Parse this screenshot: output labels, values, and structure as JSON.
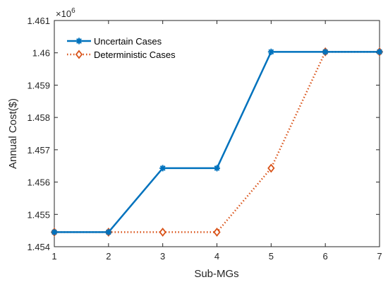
{
  "chart_data": {
    "type": "line",
    "xlabel": "Sub-MGs",
    "ylabel": "Annual Cost($)",
    "exponent_base": "×10",
    "exponent_power": "6",
    "xlim": [
      1,
      7
    ],
    "ylim": [
      1.454,
      1.461
    ],
    "xticks": [
      "1",
      "2",
      "3",
      "4",
      "5",
      "6",
      "7"
    ],
    "yticks": [
      "1.454",
      "1.455",
      "1.456",
      "1.457",
      "1.458",
      "1.459",
      "1.46",
      "1.461"
    ],
    "x": [
      1,
      2,
      3,
      4,
      5,
      6,
      7
    ],
    "legend_position": "top-left",
    "series": [
      {
        "name": "Uncertain Cases",
        "color": "#0072BD",
        "line_style": "solid",
        "marker": "asterisk",
        "values": [
          1.45445,
          1.45445,
          1.45643,
          1.45643,
          1.46003,
          1.46003,
          1.46003
        ]
      },
      {
        "name": "Deterministic Cases",
        "color": "#D95319",
        "line_style": "dotted",
        "marker": "diamond",
        "values": [
          1.45445,
          1.45445,
          1.45445,
          1.45445,
          1.45643,
          1.46003,
          1.46003
        ]
      }
    ]
  }
}
